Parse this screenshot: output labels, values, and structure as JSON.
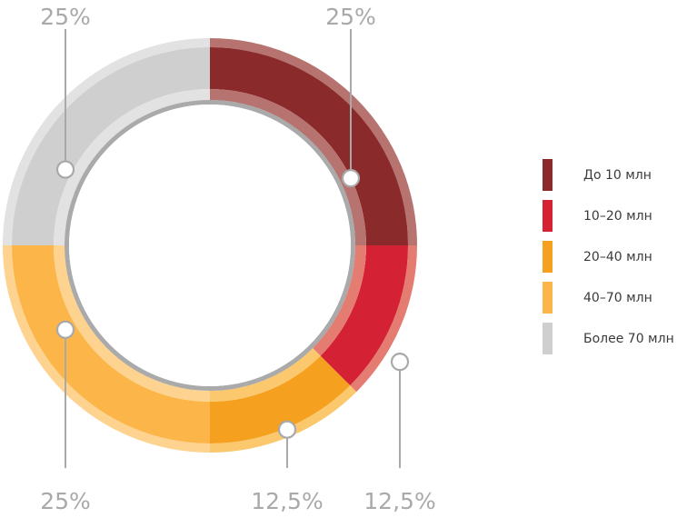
{
  "chart_data": {
    "type": "pie",
    "series": [
      {
        "label": "До 10 млн",
        "value": 25,
        "value_label": "25%",
        "color": "#8a2a2a",
        "outer_color": "#b6736f"
      },
      {
        "label": "10–20 млн",
        "value": 12.5,
        "value_label": "12,5%",
        "color": "#d42133",
        "outer_color": "#e47c72"
      },
      {
        "label": "20–40 млн",
        "value": 12.5,
        "value_label": "12,5%",
        "color": "#f5a01e",
        "outer_color": "#fbc86e"
      },
      {
        "label": "40–70 млн",
        "value": 25,
        "value_label": "25%",
        "color": "#fbb549",
        "outer_color": "#fdd38f"
      },
      {
        "label": "Более 70 млн",
        "value": 25,
        "value_label": "25%",
        "color": "#cfcfcf",
        "outer_color": "#e2e2e2"
      }
    ],
    "legend_position": "right",
    "style": "donut"
  }
}
